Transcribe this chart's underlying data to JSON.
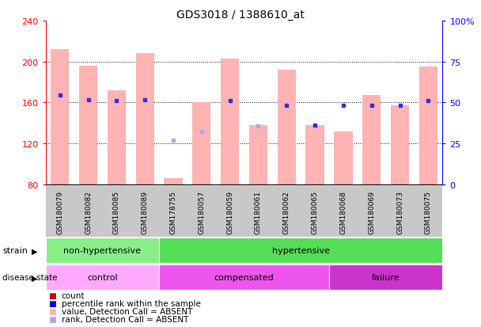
{
  "title": "GDS3018 / 1388610_at",
  "samples": [
    "GSM180079",
    "GSM180082",
    "GSM180085",
    "GSM180089",
    "GSM178755",
    "GSM180057",
    "GSM180059",
    "GSM180061",
    "GSM180062",
    "GSM180065",
    "GSM180068",
    "GSM180069",
    "GSM180073",
    "GSM180075"
  ],
  "bar_values": [
    212,
    196,
    172,
    208,
    86,
    160,
    203,
    138,
    192,
    138,
    132,
    167,
    157,
    195
  ],
  "dot_present_left": [
    167,
    163,
    162,
    163,
    null,
    null,
    162,
    null,
    157,
    138,
    157,
    157,
    157,
    162
  ],
  "dot_absent_left": [
    null,
    null,
    null,
    null,
    123,
    132,
    null,
    137,
    null,
    null,
    null,
    null,
    null,
    null
  ],
  "ylim_left": [
    80,
    240
  ],
  "ylim_right": [
    0,
    100
  ],
  "yticks_left": [
    80,
    120,
    160,
    200,
    240
  ],
  "yticks_right": [
    0,
    25,
    50,
    75,
    100
  ],
  "ytick_labels_right": [
    "0",
    "25",
    "50",
    "75",
    "100%"
  ],
  "bar_color": "#FFB3B3",
  "dot_color_present": "#3333CC",
  "dot_color_absent": "#AAAADD",
  "strain_groups": [
    {
      "label": "non-hypertensive",
      "start": 0,
      "end": 4,
      "color": "#88EE88"
    },
    {
      "label": "hypertensive",
      "start": 4,
      "end": 14,
      "color": "#55DD55"
    }
  ],
  "disease_groups": [
    {
      "label": "control",
      "start": 0,
      "end": 4,
      "color": "#FFAAFF"
    },
    {
      "label": "compensated",
      "start": 4,
      "end": 10,
      "color": "#EE55EE"
    },
    {
      "label": "failure",
      "start": 10,
      "end": 14,
      "color": "#CC33CC"
    }
  ],
  "legend_colors": [
    "#CC0000",
    "#0000CC",
    "#FFB3B3",
    "#AAAADD"
  ],
  "legend_labels": [
    "count",
    "percentile rank within the sample",
    "value, Detection Call = ABSENT",
    "rank, Detection Call = ABSENT"
  ],
  "grid_lines": [
    120,
    160,
    200
  ],
  "background_color": "#FFFFFF"
}
